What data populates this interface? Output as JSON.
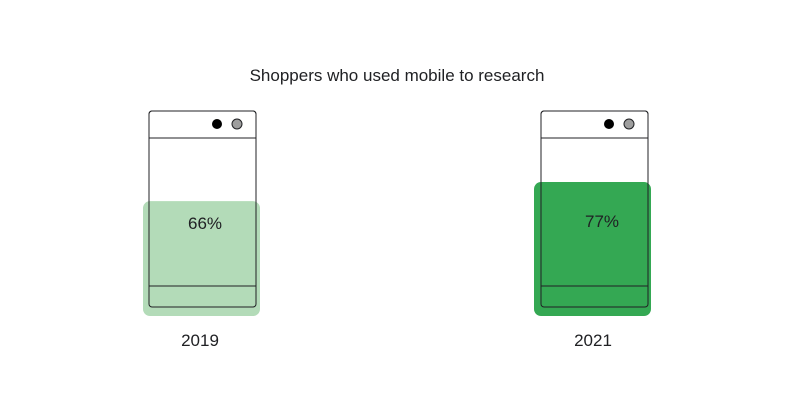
{
  "chart_data": {
    "type": "bar",
    "title": "Shoppers who used mobile to research",
    "categories": [
      "2019",
      "2021"
    ],
    "values": [
      66,
      77
    ],
    "value_labels": [
      "66%",
      "77%"
    ],
    "unit": "%",
    "ylim": [
      0,
      100
    ],
    "legend": "none",
    "grid": false,
    "colors": {
      "2019": "#b3dbb8",
      "2021": "#34a853",
      "outline": "#202124",
      "camera_dot": "#000000",
      "camera_dot_2": "#9e9e9e"
    }
  }
}
